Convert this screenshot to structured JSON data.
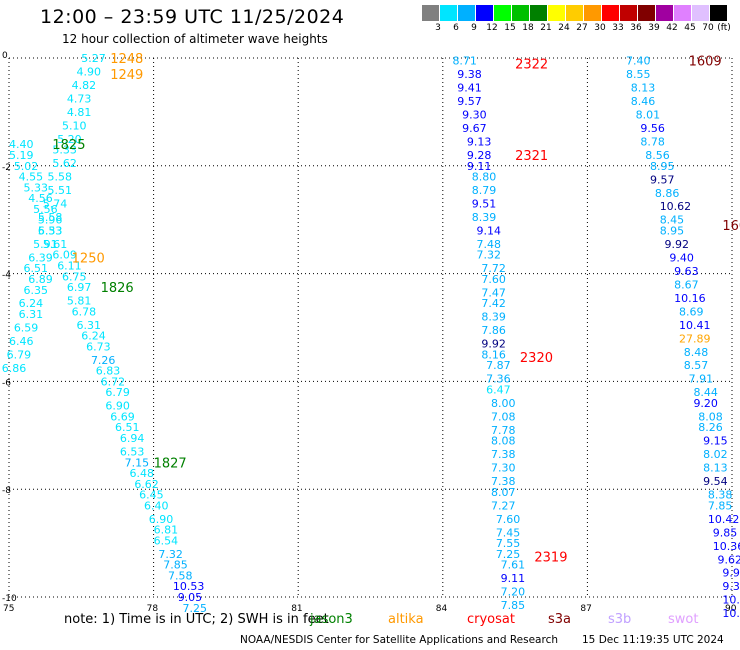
{
  "header": {
    "title": "12:00 – 23:59 UTC 11/25/2024",
    "subtitle": "12 hour collection of altimeter wave heights"
  },
  "legend": {
    "unit": "(ft)",
    "bins": [
      {
        "label": "3",
        "color": "#808080"
      },
      {
        "label": "6",
        "color": "#00e5ff"
      },
      {
        "label": "9",
        "color": "#00b0ff"
      },
      {
        "label": "12",
        "color": "#0000ff"
      },
      {
        "label": "15",
        "color": "#00ff00"
      },
      {
        "label": "18",
        "color": "#00c000"
      },
      {
        "label": "21",
        "color": "#008000"
      },
      {
        "label": "24",
        "color": "#ffff00"
      },
      {
        "label": "27",
        "color": "#ffcc00"
      },
      {
        "label": "30",
        "color": "#ff9900"
      },
      {
        "label": "33",
        "color": "#ff0000"
      },
      {
        "label": "36",
        "color": "#c00000"
      },
      {
        "label": "39",
        "color": "#800000"
      },
      {
        "label": "42",
        "color": "#a000a0"
      },
      {
        "label": "45",
        "color": "#e080ff"
      },
      {
        "label": "70",
        "color": "#e0c0ff"
      },
      {
        "label": "",
        "color": "#000000"
      }
    ]
  },
  "axes": {
    "x_ticks": [
      "75",
      "78",
      "81",
      "84",
      "87",
      "90"
    ],
    "y_ticks": [
      "0",
      "-2",
      "-4",
      "-6",
      "-8",
      "-10"
    ]
  },
  "note": {
    "text": "note:  1) Time is in UTC; 2) SWH is in feet",
    "satellites": [
      {
        "name": "jason3",
        "color": "#008000"
      },
      {
        "name": "altika",
        "color": "#ff9900"
      },
      {
        "name": "cryosat",
        "color": "#ff0000"
      },
      {
        "name": "s3a",
        "color": "#800000"
      },
      {
        "name": "s3b",
        "color": "#c0a0ff"
      },
      {
        "name": "swot",
        "color": "#e0a0ff"
      }
    ]
  },
  "footer": {
    "credit": "NOAA/NESDIS Center for Satellite Applications and Research",
    "timestamp": "15 Dec 11:19:35 UTC 2024"
  },
  "tracks": {
    "track_a": [
      {
        "lon": 76.5,
        "lat": 0.0,
        "v": "5.27",
        "c": "#00e5ff"
      },
      {
        "lon": 76.4,
        "lat": -0.25,
        "v": "4.90",
        "c": "#00e5ff"
      },
      {
        "lon": 76.3,
        "lat": -0.5,
        "v": "4.82",
        "c": "#00e5ff"
      },
      {
        "lon": 76.2,
        "lat": -0.75,
        "v": "4.73",
        "c": "#00e5ff"
      },
      {
        "lon": 76.2,
        "lat": -1.0,
        "v": "4.81",
        "c": "#00e5ff"
      },
      {
        "lon": 76.1,
        "lat": -1.25,
        "v": "5.10",
        "c": "#00e5ff"
      },
      {
        "lon": 76.0,
        "lat": -1.5,
        "v": "5.20",
        "c": "#00e5ff"
      },
      {
        "lon": 75.9,
        "lat": -1.7,
        "v": "5.33",
        "c": "#00e5ff"
      },
      {
        "lon": 75.9,
        "lat": -1.95,
        "v": "5.62",
        "c": "#00e5ff"
      },
      {
        "lon": 75.8,
        "lat": -2.2,
        "v": "5.58",
        "c": "#00e5ff"
      },
      {
        "lon": 75.8,
        "lat": -2.45,
        "v": "5.51",
        "c": "#00e5ff"
      },
      {
        "lon": 75.7,
        "lat": -2.7,
        "v": "5.74",
        "c": "#00e5ff"
      },
      {
        "lon": 75.6,
        "lat": -2.95,
        "v": "5.58",
        "c": "#00e5ff"
      },
      {
        "lon": 75.6,
        "lat": -3.2,
        "v": "6.33",
        "c": "#00e5ff"
      },
      {
        "lon": 75.7,
        "lat": -3.45,
        "v": "5.61",
        "c": "#00e5ff"
      },
      {
        "lon": 75.9,
        "lat": -3.65,
        "v": "6.09",
        "c": "#00e5ff"
      },
      {
        "lon": 76.0,
        "lat": -3.85,
        "v": "6.11",
        "c": "#00e5ff"
      },
      {
        "lon": 76.1,
        "lat": -4.05,
        "v": "6.75",
        "c": "#00e5ff"
      },
      {
        "lon": 76.2,
        "lat": -4.25,
        "v": "6.97",
        "c": "#00e5ff"
      },
      {
        "lon": 76.2,
        "lat": -4.5,
        "v": "5.81",
        "c": "#00e5ff"
      },
      {
        "lon": 76.3,
        "lat": -4.7,
        "v": "6.78",
        "c": "#00e5ff"
      },
      {
        "lon": 76.4,
        "lat": -4.95,
        "v": "6.31",
        "c": "#00e5ff"
      },
      {
        "lon": 76.5,
        "lat": -5.15,
        "v": "6.24",
        "c": "#00e5ff"
      },
      {
        "lon": 76.6,
        "lat": -5.35,
        "v": "6.73",
        "c": "#00e5ff"
      },
      {
        "lon": 76.7,
        "lat": -5.6,
        "v": "7.26",
        "c": "#00b0ff"
      },
      {
        "lon": 76.8,
        "lat": -5.8,
        "v": "6.83",
        "c": "#00e5ff"
      },
      {
        "lon": 76.9,
        "lat": -6.0,
        "v": "6.72",
        "c": "#00e5ff"
      },
      {
        "lon": 77.0,
        "lat": -6.2,
        "v": "6.79",
        "c": "#00e5ff"
      },
      {
        "lon": 77.0,
        "lat": -6.45,
        "v": "6.90",
        "c": "#00e5ff"
      },
      {
        "lon": 77.1,
        "lat": -6.65,
        "v": "6.69",
        "c": "#00e5ff"
      },
      {
        "lon": 77.2,
        "lat": -6.85,
        "v": "6.51",
        "c": "#00e5ff"
      },
      {
        "lon": 77.3,
        "lat": -7.05,
        "v": "6.94",
        "c": "#00e5ff"
      },
      {
        "lon": 77.3,
        "lat": -7.3,
        "v": "6.53",
        "c": "#00e5ff"
      },
      {
        "lon": 77.4,
        "lat": -7.5,
        "v": "7.15",
        "c": "#00b0ff"
      },
      {
        "lon": 77.5,
        "lat": -7.7,
        "v": "6.48",
        "c": "#00e5ff"
      },
      {
        "lon": 77.6,
        "lat": -7.9,
        "v": "6.62",
        "c": "#00e5ff"
      },
      {
        "lon": 77.7,
        "lat": -8.1,
        "v": "6.45",
        "c": "#00e5ff"
      },
      {
        "lon": 77.8,
        "lat": -8.3,
        "v": "6.40",
        "c": "#00e5ff"
      },
      {
        "lon": 77.9,
        "lat": -8.55,
        "v": "6.90",
        "c": "#00e5ff"
      },
      {
        "lon": 78.0,
        "lat": -8.75,
        "v": "6.81",
        "c": "#00e5ff"
      },
      {
        "lon": 78.0,
        "lat": -8.95,
        "v": "6.54",
        "c": "#00e5ff"
      },
      {
        "lon": 78.1,
        "lat": -9.2,
        "v": "7.32",
        "c": "#00b0ff"
      },
      {
        "lon": 78.2,
        "lat": -9.4,
        "v": "7.85",
        "c": "#00b0ff"
      },
      {
        "lon": 78.3,
        "lat": -9.6,
        "v": "7.58",
        "c": "#00b0ff"
      },
      {
        "lon": 78.4,
        "lat": -9.8,
        "v": "10.53",
        "c": "#0000ff"
      },
      {
        "lon": 78.5,
        "lat": -10.0,
        "v": "9.05",
        "c": "#0000ff"
      },
      {
        "lon": 78.6,
        "lat": -10.2,
        "v": "7.25",
        "c": "#00b0ff"
      }
    ],
    "track_b": [
      {
        "lon": 75.0,
        "lat": -1.6,
        "v": "4.40",
        "c": "#00e5ff"
      },
      {
        "lon": 75.0,
        "lat": -1.8,
        "v": "5.19",
        "c": "#00e5ff"
      },
      {
        "lon": 75.1,
        "lat": -2.0,
        "v": "5.02",
        "c": "#00e5ff"
      },
      {
        "lon": 75.2,
        "lat": -2.2,
        "v": "4.55",
        "c": "#00e5ff"
      },
      {
        "lon": 75.3,
        "lat": -2.4,
        "v": "5.33",
        "c": "#00e5ff"
      },
      {
        "lon": 75.4,
        "lat": -2.6,
        "v": "4.56",
        "c": "#00e5ff"
      },
      {
        "lon": 75.5,
        "lat": -2.8,
        "v": "5.56",
        "c": "#00e5ff"
      },
      {
        "lon": 75.6,
        "lat": -3.0,
        "v": "5.96",
        "c": "#00e5ff"
      },
      {
        "lon": 75.6,
        "lat": -3.2,
        "v": "5.53",
        "c": "#00e5ff"
      },
      {
        "lon": 75.5,
        "lat": -3.45,
        "v": "5.91",
        "c": "#00e5ff"
      },
      {
        "lon": 75.4,
        "lat": -3.7,
        "v": "6.39",
        "c": "#00e5ff"
      },
      {
        "lon": 75.3,
        "lat": -3.9,
        "v": "6.51",
        "c": "#00e5ff"
      },
      {
        "lon": 75.4,
        "lat": -4.1,
        "v": "6.89",
        "c": "#00e5ff"
      },
      {
        "lon": 75.3,
        "lat": -4.3,
        "v": "6.35",
        "c": "#00e5ff"
      },
      {
        "lon": 75.2,
        "lat": -4.55,
        "v": "6.24",
        "c": "#00e5ff"
      },
      {
        "lon": 75.2,
        "lat": -4.75,
        "v": "6.31",
        "c": "#00e5ff"
      },
      {
        "lon": 75.1,
        "lat": -5.0,
        "v": "6.59",
        "c": "#00e5ff"
      },
      {
        "lon": 75.0,
        "lat": -5.25,
        "v": "6.46",
        "c": "#00e5ff"
      },
      {
        "lon": 74.95,
        "lat": -5.5,
        "v": "6.79",
        "c": "#00e5ff"
      },
      {
        "lon": 74.85,
        "lat": -5.75,
        "v": "6.86",
        "c": "#00e5ff"
      }
    ],
    "track_c": [
      {
        "lon": 84.2,
        "lat": -0.05,
        "v": "8.71",
        "c": "#00b0ff"
      },
      {
        "lon": 84.3,
        "lat": -0.3,
        "v": "9.38",
        "c": "#0000ff"
      },
      {
        "lon": 84.3,
        "lat": -0.55,
        "v": "9.41",
        "c": "#0000ff"
      },
      {
        "lon": 84.3,
        "lat": -0.8,
        "v": "9.57",
        "c": "#0000ff"
      },
      {
        "lon": 84.4,
        "lat": -1.05,
        "v": "9.30",
        "c": "#0000ff"
      },
      {
        "lon": 84.4,
        "lat": -1.3,
        "v": "9.67",
        "c": "#0000ff"
      },
      {
        "lon": 84.5,
        "lat": -1.55,
        "v": "9.13",
        "c": "#0000ff"
      },
      {
        "lon": 84.5,
        "lat": -1.8,
        "v": "9.28",
        "c": "#0000ff"
      },
      {
        "lon": 84.5,
        "lat": -2.0,
        "v": "9.11",
        "c": "#0000ff"
      },
      {
        "lon": 84.6,
        "lat": -2.2,
        "v": "8.80",
        "c": "#00b0ff"
      },
      {
        "lon": 84.6,
        "lat": -2.45,
        "v": "8.79",
        "c": "#00b0ff"
      },
      {
        "lon": 84.6,
        "lat": -2.7,
        "v": "9.51",
        "c": "#0000ff"
      },
      {
        "lon": 84.6,
        "lat": -2.95,
        "v": "8.39",
        "c": "#00b0ff"
      },
      {
        "lon": 84.7,
        "lat": -3.2,
        "v": "9.14",
        "c": "#0000ff"
      },
      {
        "lon": 84.7,
        "lat": -3.45,
        "v": "7.48",
        "c": "#00b0ff"
      },
      {
        "lon": 84.7,
        "lat": -3.65,
        "v": "7.32",
        "c": "#00b0ff"
      },
      {
        "lon": 84.8,
        "lat": -3.9,
        "v": "7.72",
        "c": "#00b0ff"
      },
      {
        "lon": 84.8,
        "lat": -4.1,
        "v": "7.60",
        "c": "#00b0ff"
      },
      {
        "lon": 84.8,
        "lat": -4.35,
        "v": "7.47",
        "c": "#00b0ff"
      },
      {
        "lon": 84.8,
        "lat": -4.55,
        "v": "7.42",
        "c": "#00b0ff"
      },
      {
        "lon": 84.8,
        "lat": -4.8,
        "v": "8.39",
        "c": "#00b0ff"
      },
      {
        "lon": 84.8,
        "lat": -5.05,
        "v": "7.86",
        "c": "#00b0ff"
      },
      {
        "lon": 84.8,
        "lat": -5.3,
        "v": "9.92",
        "c": "#000080"
      },
      {
        "lon": 84.8,
        "lat": -5.5,
        "v": "8.16",
        "c": "#00b0ff"
      },
      {
        "lon": 84.9,
        "lat": -5.7,
        "v": "7.87",
        "c": "#00b0ff"
      },
      {
        "lon": 84.9,
        "lat": -5.95,
        "v": "7.36",
        "c": "#00b0ff"
      },
      {
        "lon": 84.9,
        "lat": -6.15,
        "v": "6.47",
        "c": "#00e5ff"
      },
      {
        "lon": 85.0,
        "lat": -6.4,
        "v": "8.00",
        "c": "#00b0ff"
      },
      {
        "lon": 85.0,
        "lat": -6.65,
        "v": "7.08",
        "c": "#00b0ff"
      },
      {
        "lon": 85.0,
        "lat": -6.9,
        "v": "7.78",
        "c": "#00b0ff"
      },
      {
        "lon": 85.0,
        "lat": -7.1,
        "v": "8.08",
        "c": "#00b0ff"
      },
      {
        "lon": 85.0,
        "lat": -7.35,
        "v": "7.38",
        "c": "#00b0ff"
      },
      {
        "lon": 85.0,
        "lat": -7.6,
        "v": "7.30",
        "c": "#00b0ff"
      },
      {
        "lon": 85.0,
        "lat": -7.85,
        "v": "7.38",
        "c": "#00b0ff"
      },
      {
        "lon": 85.0,
        "lat": -8.05,
        "v": "8.07",
        "c": "#00b0ff"
      },
      {
        "lon": 85.0,
        "lat": -8.3,
        "v": "7.27",
        "c": "#00b0ff"
      },
      {
        "lon": 85.1,
        "lat": -8.55,
        "v": "7.60",
        "c": "#00b0ff"
      },
      {
        "lon": 85.1,
        "lat": -8.8,
        "v": "7.45",
        "c": "#00b0ff"
      },
      {
        "lon": 85.1,
        "lat": -9.0,
        "v": "7.55",
        "c": "#00b0ff"
      },
      {
        "lon": 85.1,
        "lat": -9.2,
        "v": "7.25",
        "c": "#00b0ff"
      },
      {
        "lon": 85.2,
        "lat": -9.4,
        "v": "7.61",
        "c": "#00b0ff"
      },
      {
        "lon": 85.2,
        "lat": -9.65,
        "v": "9.11",
        "c": "#0000ff"
      },
      {
        "lon": 85.2,
        "lat": -9.9,
        "v": "7.20",
        "c": "#00b0ff"
      },
      {
        "lon": 85.2,
        "lat": -10.15,
        "v": "7.85",
        "c": "#00b0ff"
      }
    ],
    "track_d": [
      {
        "lon": 87.8,
        "lat": -0.05,
        "v": "7.40",
        "c": "#00b0ff"
      },
      {
        "lon": 87.8,
        "lat": -0.3,
        "v": "8.55",
        "c": "#00b0ff"
      },
      {
        "lon": 87.9,
        "lat": -0.55,
        "v": "8.13",
        "c": "#00b0ff"
      },
      {
        "lon": 87.9,
        "lat": -0.8,
        "v": "8.46",
        "c": "#00b0ff"
      },
      {
        "lon": 88.0,
        "lat": -1.05,
        "v": "8.01",
        "c": "#00b0ff"
      },
      {
        "lon": 88.1,
        "lat": -1.3,
        "v": "9.56",
        "c": "#0000ff"
      },
      {
        "lon": 88.1,
        "lat": -1.55,
        "v": "8.78",
        "c": "#00b0ff"
      },
      {
        "lon": 88.2,
        "lat": -1.8,
        "v": "8.56",
        "c": "#00b0ff"
      },
      {
        "lon": 88.3,
        "lat": -2.0,
        "v": "8.95",
        "c": "#00b0ff"
      },
      {
        "lon": 88.3,
        "lat": -2.25,
        "v": "9.57",
        "c": "#000080"
      },
      {
        "lon": 88.4,
        "lat": -2.5,
        "v": "8.86",
        "c": "#00b0ff"
      },
      {
        "lon": 88.5,
        "lat": -2.75,
        "v": "10.62",
        "c": "#000080"
      },
      {
        "lon": 88.5,
        "lat": -3.0,
        "v": "8.45",
        "c": "#00b0ff"
      },
      {
        "lon": 88.5,
        "lat": -3.2,
        "v": "8.95",
        "c": "#00b0ff"
      },
      {
        "lon": 88.6,
        "lat": -3.45,
        "v": "9.92",
        "c": "#000080"
      },
      {
        "lon": 88.7,
        "lat": -3.7,
        "v": "9.40",
        "c": "#0000ff"
      },
      {
        "lon": 88.8,
        "lat": -3.95,
        "v": "9.63",
        "c": "#0000ff"
      },
      {
        "lon": 88.8,
        "lat": -4.2,
        "v": "8.67",
        "c": "#00b0ff"
      },
      {
        "lon": 88.8,
        "lat": -4.45,
        "v": "10.16",
        "c": "#0000ff"
      },
      {
        "lon": 88.9,
        "lat": -4.7,
        "v": "8.69",
        "c": "#00b0ff"
      },
      {
        "lon": 88.9,
        "lat": -4.95,
        "v": "10.41",
        "c": "#0000ff"
      },
      {
        "lon": 88.9,
        "lat": -5.2,
        "v": "27.89",
        "c": "#ffa500"
      },
      {
        "lon": 89.0,
        "lat": -5.45,
        "v": "8.48",
        "c": "#00b0ff"
      },
      {
        "lon": 89.0,
        "lat": -5.7,
        "v": "8.57",
        "c": "#00b0ff"
      },
      {
        "lon": 89.1,
        "lat": -5.95,
        "v": "7.91",
        "c": "#00b0ff"
      },
      {
        "lon": 89.2,
        "lat": -6.2,
        "v": "8.44",
        "c": "#00b0ff"
      },
      {
        "lon": 89.2,
        "lat": -6.4,
        "v": "9.20",
        "c": "#0000ff"
      },
      {
        "lon": 89.3,
        "lat": -6.65,
        "v": "8.08",
        "c": "#00b0ff"
      },
      {
        "lon": 89.3,
        "lat": -6.85,
        "v": "8.26",
        "c": "#00b0ff"
      },
      {
        "lon": 89.4,
        "lat": -7.1,
        "v": "9.15",
        "c": "#0000ff"
      },
      {
        "lon": 89.4,
        "lat": -7.35,
        "v": "8.02",
        "c": "#00b0ff"
      },
      {
        "lon": 89.4,
        "lat": -7.6,
        "v": "8.13",
        "c": "#00b0ff"
      },
      {
        "lon": 89.4,
        "lat": -7.85,
        "v": "9.54",
        "c": "#000080"
      },
      {
        "lon": 89.5,
        "lat": -8.1,
        "v": "8.38",
        "c": "#00b0ff"
      },
      {
        "lon": 89.5,
        "lat": -8.3,
        "v": "7.85",
        "c": "#00b0ff"
      },
      {
        "lon": 89.5,
        "lat": -8.55,
        "v": "10.42",
        "c": "#0000ff"
      },
      {
        "lon": 89.6,
        "lat": -8.8,
        "v": "9.85",
        "c": "#0000ff"
      },
      {
        "lon": 89.6,
        "lat": -9.05,
        "v": "10.36",
        "c": "#0000ff"
      },
      {
        "lon": 89.7,
        "lat": -9.3,
        "v": "9.62",
        "c": "#0000ff"
      },
      {
        "lon": 89.8,
        "lat": -9.55,
        "v": "9.93",
        "c": "#0000ff"
      },
      {
        "lon": 89.8,
        "lat": -9.8,
        "v": "9.31",
        "c": "#0000ff"
      },
      {
        "lon": 89.8,
        "lat": -10.05,
        "v": "10.2",
        "c": "#0000ff"
      },
      {
        "lon": 89.8,
        "lat": -10.3,
        "v": "10.",
        "c": "#0000ff"
      }
    ]
  },
  "time_labels": [
    {
      "lon": 77.1,
      "lat": 0.0,
      "t": "1248",
      "c": "#ff9900"
    },
    {
      "lon": 77.1,
      "lat": -0.3,
      "t": "1249",
      "c": "#ff9900"
    },
    {
      "lon": 75.9,
      "lat": -1.6,
      "t": "1825",
      "c": "#008000"
    },
    {
      "lon": 76.3,
      "lat": -3.7,
      "t": "1250",
      "c": "#ff9900"
    },
    {
      "lon": 76.9,
      "lat": -4.25,
      "t": "1826",
      "c": "#008000"
    },
    {
      "lon": 78.0,
      "lat": -7.5,
      "t": "1827",
      "c": "#008000"
    },
    {
      "lon": 85.5,
      "lat": -0.1,
      "t": "2322",
      "c": "#ff0000"
    },
    {
      "lon": 85.5,
      "lat": -1.8,
      "t": "2321",
      "c": "#ff0000"
    },
    {
      "lon": 85.6,
      "lat": -5.55,
      "t": "2320",
      "c": "#ff0000"
    },
    {
      "lon": 85.9,
      "lat": -9.25,
      "t": "2319",
      "c": "#ff0000"
    },
    {
      "lon": 89.1,
      "lat": -0.05,
      "t": "1609",
      "c": "#800000"
    },
    {
      "lon": 89.8,
      "lat": -3.1,
      "t": "1608",
      "c": "#800000"
    },
    {
      "lon": 90.3,
      "lat": -7.0,
      "t": "16",
      "c": "#800000"
    }
  ]
}
